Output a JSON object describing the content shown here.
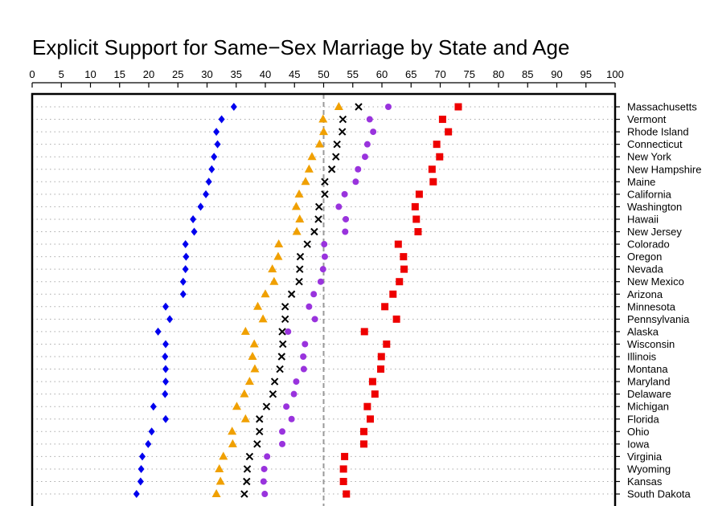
{
  "chart_data": {
    "type": "scatter",
    "title": "Explicit Support for Same−Sex Marriage by State and Age",
    "xlabel": "",
    "ylabel": "",
    "xlim": [
      0,
      100
    ],
    "x_ticks": [
      0,
      5,
      10,
      15,
      20,
      25,
      30,
      35,
      40,
      45,
      50,
      55,
      60,
      65,
      70,
      75,
      80,
      85,
      90,
      95,
      100
    ],
    "reference_line": 50,
    "grid": "dotted horizontal lines",
    "legend": "none",
    "categories": [
      "Massachusetts",
      "Vermont",
      "Rhode Island",
      "Connecticut",
      "New York",
      "New Hampshire",
      "Maine",
      "California",
      "Washington",
      "Hawaii",
      "New Jersey",
      "Colorado",
      "Oregon",
      "Nevada",
      "New Mexico",
      "Arizona",
      "Minnesota",
      "Pennsylvania",
      "Alaska",
      "Wisconsin",
      "Illinois",
      "Montana",
      "Maryland",
      "Delaware",
      "Michigan",
      "Florida",
      "Ohio",
      "Iowa",
      "Virginia",
      "Wyoming",
      "Kansas",
      "South Dakota"
    ],
    "series": [
      {
        "marker": "diamond",
        "color": "#0000ee",
        "values": [
          34.6,
          32.5,
          31.6,
          31.8,
          31.2,
          30.8,
          30.3,
          29.8,
          28.9,
          27.6,
          27.8,
          26.3,
          26.4,
          26.3,
          25.9,
          25.9,
          22.9,
          23.6,
          21.6,
          22.9,
          22.8,
          22.9,
          22.9,
          22.8,
          20.8,
          22.9,
          20.5,
          19.9,
          18.9,
          18.7,
          18.6,
          17.9
        ]
      },
      {
        "marker": "triangle",
        "color": "#f0a000",
        "values": [
          52.6,
          49.9,
          50.0,
          49.3,
          48.0,
          47.5,
          46.9,
          45.8,
          45.3,
          45.9,
          45.4,
          42.3,
          42.2,
          41.2,
          41.5,
          40.0,
          38.7,
          39.6,
          36.6,
          38.1,
          37.8,
          38.2,
          37.3,
          36.4,
          35.1,
          36.6,
          34.3,
          34.4,
          32.8,
          32.1,
          32.3,
          31.6
        ]
      },
      {
        "marker": "cross",
        "color": "#000000",
        "values": [
          56.0,
          53.3,
          53.2,
          52.3,
          52.1,
          51.4,
          50.2,
          50.2,
          49.2,
          49.1,
          48.4,
          47.2,
          46.0,
          45.9,
          45.8,
          44.5,
          43.4,
          43.4,
          42.9,
          43.0,
          42.8,
          42.5,
          41.6,
          41.3,
          40.2,
          39.0,
          39.0,
          38.6,
          37.3,
          36.9,
          36.8,
          36.4
        ]
      },
      {
        "marker": "circle",
        "color": "#9933dd",
        "values": [
          61.1,
          57.9,
          58.5,
          57.5,
          57.1,
          55.9,
          55.5,
          53.6,
          52.6,
          53.8,
          53.7,
          50.1,
          50.2,
          49.9,
          49.5,
          48.3,
          47.5,
          48.5,
          43.9,
          46.8,
          46.5,
          46.6,
          45.3,
          44.9,
          43.6,
          44.5,
          42.9,
          42.9,
          40.3,
          39.8,
          39.7,
          39.9
        ]
      },
      {
        "marker": "square",
        "color": "#ee0000",
        "values": [
          73.1,
          70.4,
          71.4,
          69.4,
          69.9,
          68.6,
          68.8,
          66.4,
          65.7,
          65.9,
          66.2,
          62.8,
          63.7,
          63.8,
          63.0,
          61.9,
          60.5,
          62.5,
          57.0,
          60.8,
          59.9,
          59.8,
          58.4,
          58.8,
          57.5,
          58.0,
          56.9,
          56.9,
          53.6,
          53.4,
          53.4,
          53.9
        ]
      }
    ]
  }
}
